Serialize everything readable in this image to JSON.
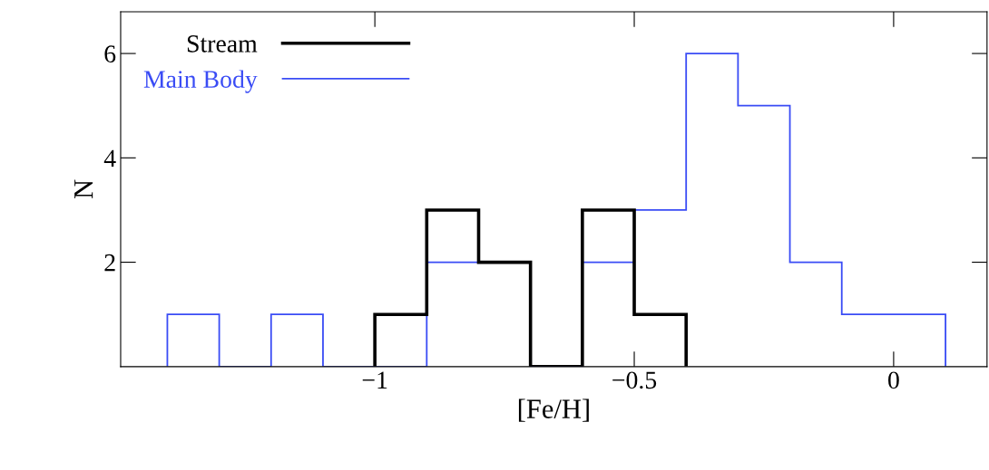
{
  "chart_data": {
    "type": "histogram",
    "xlabel": "[Fe/H]",
    "ylabel": "N",
    "bins": [
      -1.4,
      -1.3,
      -1.2,
      -1.1,
      -1.0,
      -0.9,
      -0.8,
      -0.7,
      -0.6,
      -0.5,
      -0.4,
      -0.3,
      -0.2,
      -0.1,
      0.0,
      0.1
    ],
    "series": [
      {
        "name": "Stream",
        "color": "#000000",
        "bins": [
          -1.0,
          -0.9,
          -0.8,
          -0.7,
          -0.6,
          -0.5,
          -0.4
        ],
        "values": [
          1,
          3,
          2,
          0,
          3,
          1
        ]
      },
      {
        "name": "Main Body",
        "color": "#3a4cf5",
        "values": [
          1,
          0,
          1,
          0,
          0,
          2,
          2,
          0,
          2,
          3,
          6,
          5,
          2,
          1,
          1
        ]
      }
    ],
    "xlim": [
      -1.49,
      0.18
    ],
    "ylim": [
      0,
      6.8
    ],
    "xticks": [
      {
        "value": -1,
        "label": "−1"
      },
      {
        "value": -0.5,
        "label": "−0.5"
      },
      0
    ],
    "yticks": [
      2,
      4,
      6
    ],
    "grid": false,
    "legend": "top left"
  }
}
